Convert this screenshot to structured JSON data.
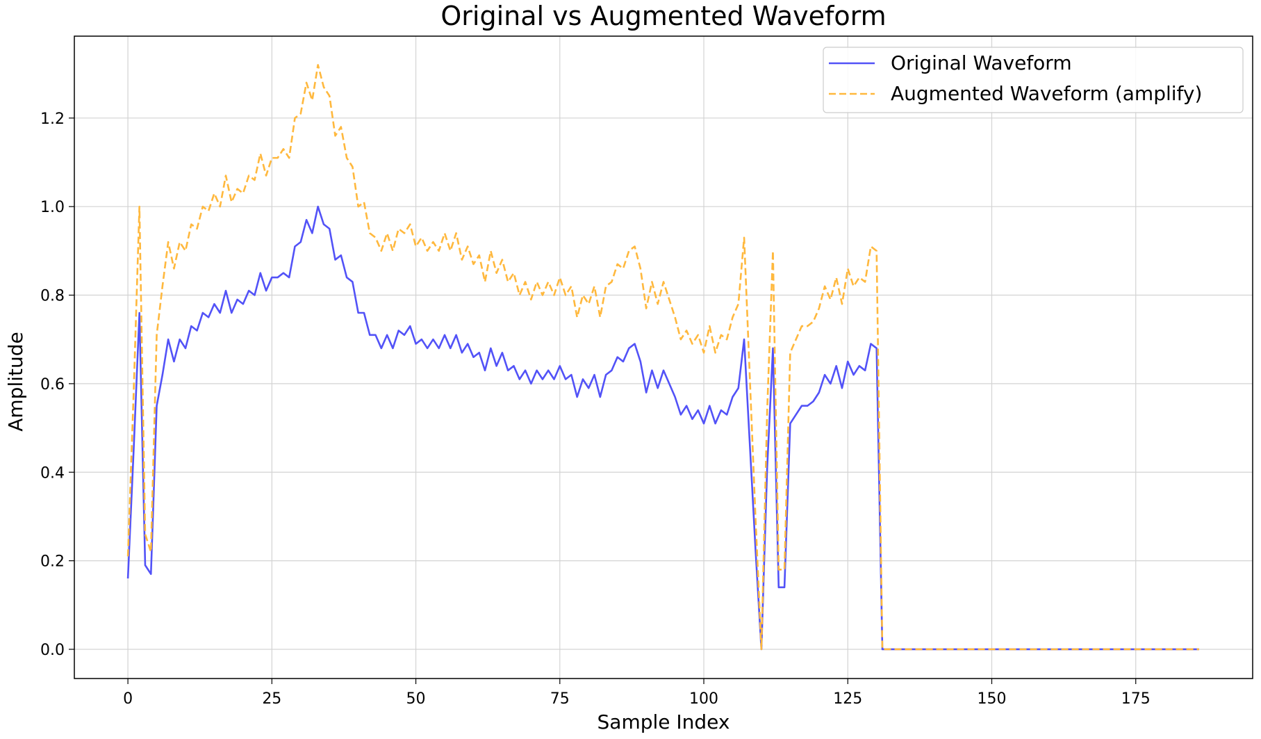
{
  "chart_data": {
    "type": "line",
    "title": "Original vs Augmented Waveform",
    "xlabel": "Sample Index",
    "ylabel": "Amplitude",
    "xlim": [
      -9.3,
      195.3
    ],
    "ylim": [
      -0.066,
      1.385
    ],
    "xticks": [
      0,
      25,
      50,
      75,
      100,
      125,
      150,
      175
    ],
    "yticks": [
      0.0,
      0.2,
      0.4,
      0.6,
      0.8,
      1.0,
      1.2
    ],
    "grid": true,
    "legend_position": "top-right",
    "series": [
      {
        "name": "Original Waveform",
        "color": "#5252f7",
        "style": "solid",
        "points": [
          [
            0,
            0.16
          ],
          [
            1,
            0.45
          ],
          [
            2,
            0.76
          ],
          [
            3,
            0.19
          ],
          [
            4,
            0.17
          ],
          [
            5,
            0.55
          ],
          [
            6,
            0.62
          ],
          [
            7,
            0.7
          ],
          [
            8,
            0.65
          ],
          [
            9,
            0.7
          ],
          [
            10,
            0.68
          ],
          [
            11,
            0.73
          ],
          [
            12,
            0.72
          ],
          [
            13,
            0.76
          ],
          [
            14,
            0.75
          ],
          [
            15,
            0.78
          ],
          [
            16,
            0.76
          ],
          [
            17,
            0.81
          ],
          [
            18,
            0.76
          ],
          [
            19,
            0.79
          ],
          [
            20,
            0.78
          ],
          [
            21,
            0.81
          ],
          [
            22,
            0.8
          ],
          [
            23,
            0.85
          ],
          [
            24,
            0.81
          ],
          [
            25,
            0.84
          ],
          [
            26,
            0.84
          ],
          [
            27,
            0.85
          ],
          [
            28,
            0.84
          ],
          [
            29,
            0.91
          ],
          [
            30,
            0.92
          ],
          [
            31,
            0.97
          ],
          [
            32,
            0.94
          ],
          [
            33,
            1.0
          ],
          [
            34,
            0.96
          ],
          [
            35,
            0.95
          ],
          [
            36,
            0.88
          ],
          [
            37,
            0.89
          ],
          [
            38,
            0.84
          ],
          [
            39,
            0.83
          ],
          [
            40,
            0.76
          ],
          [
            41,
            0.76
          ],
          [
            42,
            0.71
          ],
          [
            43,
            0.71
          ],
          [
            44,
            0.68
          ],
          [
            45,
            0.71
          ],
          [
            46,
            0.68
          ],
          [
            47,
            0.72
          ],
          [
            48,
            0.71
          ],
          [
            49,
            0.73
          ],
          [
            50,
            0.69
          ],
          [
            51,
            0.7
          ],
          [
            52,
            0.68
          ],
          [
            53,
            0.7
          ],
          [
            54,
            0.68
          ],
          [
            55,
            0.71
          ],
          [
            56,
            0.68
          ],
          [
            57,
            0.71
          ],
          [
            58,
            0.67
          ],
          [
            59,
            0.69
          ],
          [
            60,
            0.66
          ],
          [
            61,
            0.67
          ],
          [
            62,
            0.63
          ],
          [
            63,
            0.68
          ],
          [
            64,
            0.64
          ],
          [
            65,
            0.67
          ],
          [
            66,
            0.63
          ],
          [
            67,
            0.64
          ],
          [
            68,
            0.61
          ],
          [
            69,
            0.63
          ],
          [
            70,
            0.6
          ],
          [
            71,
            0.63
          ],
          [
            72,
            0.61
          ],
          [
            73,
            0.63
          ],
          [
            74,
            0.61
          ],
          [
            75,
            0.64
          ],
          [
            76,
            0.61
          ],
          [
            77,
            0.62
          ],
          [
            78,
            0.57
          ],
          [
            79,
            0.61
          ],
          [
            80,
            0.59
          ],
          [
            81,
            0.62
          ],
          [
            82,
            0.57
          ],
          [
            83,
            0.62
          ],
          [
            84,
            0.63
          ],
          [
            85,
            0.66
          ],
          [
            86,
            0.65
          ],
          [
            87,
            0.68
          ],
          [
            88,
            0.69
          ],
          [
            89,
            0.65
          ],
          [
            90,
            0.58
          ],
          [
            91,
            0.63
          ],
          [
            92,
            0.59
          ],
          [
            93,
            0.63
          ],
          [
            94,
            0.6
          ],
          [
            95,
            0.57
          ],
          [
            96,
            0.53
          ],
          [
            97,
            0.55
          ],
          [
            98,
            0.52
          ],
          [
            99,
            0.54
          ],
          [
            100,
            0.51
          ],
          [
            101,
            0.55
          ],
          [
            102,
            0.51
          ],
          [
            103,
            0.54
          ],
          [
            104,
            0.53
          ],
          [
            105,
            0.57
          ],
          [
            106,
            0.59
          ],
          [
            107,
            0.7
          ],
          [
            108,
            0.46
          ],
          [
            109,
            0.22
          ],
          [
            110,
            0.0
          ],
          [
            111,
            0.41
          ],
          [
            112,
            0.68
          ],
          [
            113,
            0.14
          ],
          [
            114,
            0.14
          ],
          [
            115,
            0.51
          ],
          [
            116,
            0.53
          ],
          [
            117,
            0.55
          ],
          [
            118,
            0.55
          ],
          [
            119,
            0.56
          ],
          [
            120,
            0.58
          ],
          [
            121,
            0.62
          ],
          [
            122,
            0.6
          ],
          [
            123,
            0.64
          ],
          [
            124,
            0.59
          ],
          [
            125,
            0.65
          ],
          [
            126,
            0.62
          ],
          [
            127,
            0.64
          ],
          [
            128,
            0.63
          ],
          [
            129,
            0.69
          ],
          [
            130,
            0.68
          ],
          [
            131,
            0.0
          ],
          [
            186,
            0.0
          ]
        ]
      },
      {
        "name": "Augmented Waveform (amplify)",
        "color": "#ffb83d",
        "style": "dashed",
        "points": [
          [
            0,
            0.21
          ],
          [
            1,
            0.58
          ],
          [
            2,
            1.0
          ],
          [
            3,
            0.26
          ],
          [
            4,
            0.22
          ],
          [
            5,
            0.71
          ],
          [
            6,
            0.82
          ],
          [
            7,
            0.92
          ],
          [
            8,
            0.86
          ],
          [
            9,
            0.92
          ],
          [
            10,
            0.9
          ],
          [
            11,
            0.96
          ],
          [
            12,
            0.95
          ],
          [
            13,
            1.0
          ],
          [
            14,
            0.99
          ],
          [
            15,
            1.03
          ],
          [
            16,
            1.0
          ],
          [
            17,
            1.07
          ],
          [
            18,
            1.01
          ],
          [
            19,
            1.04
          ],
          [
            20,
            1.03
          ],
          [
            21,
            1.07
          ],
          [
            22,
            1.06
          ],
          [
            23,
            1.12
          ],
          [
            24,
            1.07
          ],
          [
            25,
            1.11
          ],
          [
            26,
            1.11
          ],
          [
            27,
            1.13
          ],
          [
            28,
            1.11
          ],
          [
            29,
            1.2
          ],
          [
            30,
            1.21
          ],
          [
            31,
            1.28
          ],
          [
            32,
            1.24
          ],
          [
            33,
            1.32
          ],
          [
            34,
            1.27
          ],
          [
            35,
            1.25
          ],
          [
            36,
            1.16
          ],
          [
            37,
            1.18
          ],
          [
            38,
            1.11
          ],
          [
            39,
            1.09
          ],
          [
            40,
            1.0
          ],
          [
            41,
            1.01
          ],
          [
            42,
            0.94
          ],
          [
            43,
            0.93
          ],
          [
            44,
            0.9
          ],
          [
            45,
            0.94
          ],
          [
            46,
            0.9
          ],
          [
            47,
            0.95
          ],
          [
            48,
            0.94
          ],
          [
            49,
            0.96
          ],
          [
            50,
            0.91
          ],
          [
            51,
            0.93
          ],
          [
            52,
            0.9
          ],
          [
            53,
            0.92
          ],
          [
            54,
            0.9
          ],
          [
            55,
            0.94
          ],
          [
            56,
            0.9
          ],
          [
            57,
            0.94
          ],
          [
            58,
            0.88
          ],
          [
            59,
            0.91
          ],
          [
            60,
            0.87
          ],
          [
            61,
            0.89
          ],
          [
            62,
            0.83
          ],
          [
            63,
            0.9
          ],
          [
            64,
            0.85
          ],
          [
            65,
            0.88
          ],
          [
            66,
            0.83
          ],
          [
            67,
            0.85
          ],
          [
            68,
            0.8
          ],
          [
            69,
            0.83
          ],
          [
            70,
            0.79
          ],
          [
            71,
            0.83
          ],
          [
            72,
            0.8
          ],
          [
            73,
            0.83
          ],
          [
            74,
            0.8
          ],
          [
            75,
            0.84
          ],
          [
            76,
            0.8
          ],
          [
            77,
            0.82
          ],
          [
            78,
            0.75
          ],
          [
            79,
            0.8
          ],
          [
            80,
            0.78
          ],
          [
            81,
            0.82
          ],
          [
            82,
            0.75
          ],
          [
            83,
            0.82
          ],
          [
            84,
            0.83
          ],
          [
            85,
            0.87
          ],
          [
            86,
            0.86
          ],
          [
            87,
            0.9
          ],
          [
            88,
            0.91
          ],
          [
            89,
            0.86
          ],
          [
            90,
            0.77
          ],
          [
            91,
            0.83
          ],
          [
            92,
            0.78
          ],
          [
            93,
            0.83
          ],
          [
            94,
            0.79
          ],
          [
            95,
            0.75
          ],
          [
            96,
            0.7
          ],
          [
            97,
            0.72
          ],
          [
            98,
            0.69
          ],
          [
            99,
            0.71
          ],
          [
            100,
            0.67
          ],
          [
            101,
            0.73
          ],
          [
            102,
            0.67
          ],
          [
            103,
            0.71
          ],
          [
            104,
            0.7
          ],
          [
            105,
            0.75
          ],
          [
            106,
            0.78
          ],
          [
            107,
            0.93
          ],
          [
            108,
            0.61
          ],
          [
            109,
            0.29
          ],
          [
            110,
            0.0
          ],
          [
            111,
            0.54
          ],
          [
            112,
            0.9
          ],
          [
            113,
            0.18
          ],
          [
            114,
            0.18
          ],
          [
            115,
            0.67
          ],
          [
            116,
            0.7
          ],
          [
            117,
            0.73
          ],
          [
            118,
            0.73
          ],
          [
            119,
            0.74
          ],
          [
            120,
            0.77
          ],
          [
            121,
            0.82
          ],
          [
            122,
            0.79
          ],
          [
            123,
            0.84
          ],
          [
            124,
            0.78
          ],
          [
            125,
            0.86
          ],
          [
            126,
            0.82
          ],
          [
            127,
            0.84
          ],
          [
            128,
            0.83
          ],
          [
            129,
            0.91
          ],
          [
            130,
            0.9
          ],
          [
            131,
            0.0
          ],
          [
            186,
            0.0
          ]
        ]
      }
    ]
  }
}
